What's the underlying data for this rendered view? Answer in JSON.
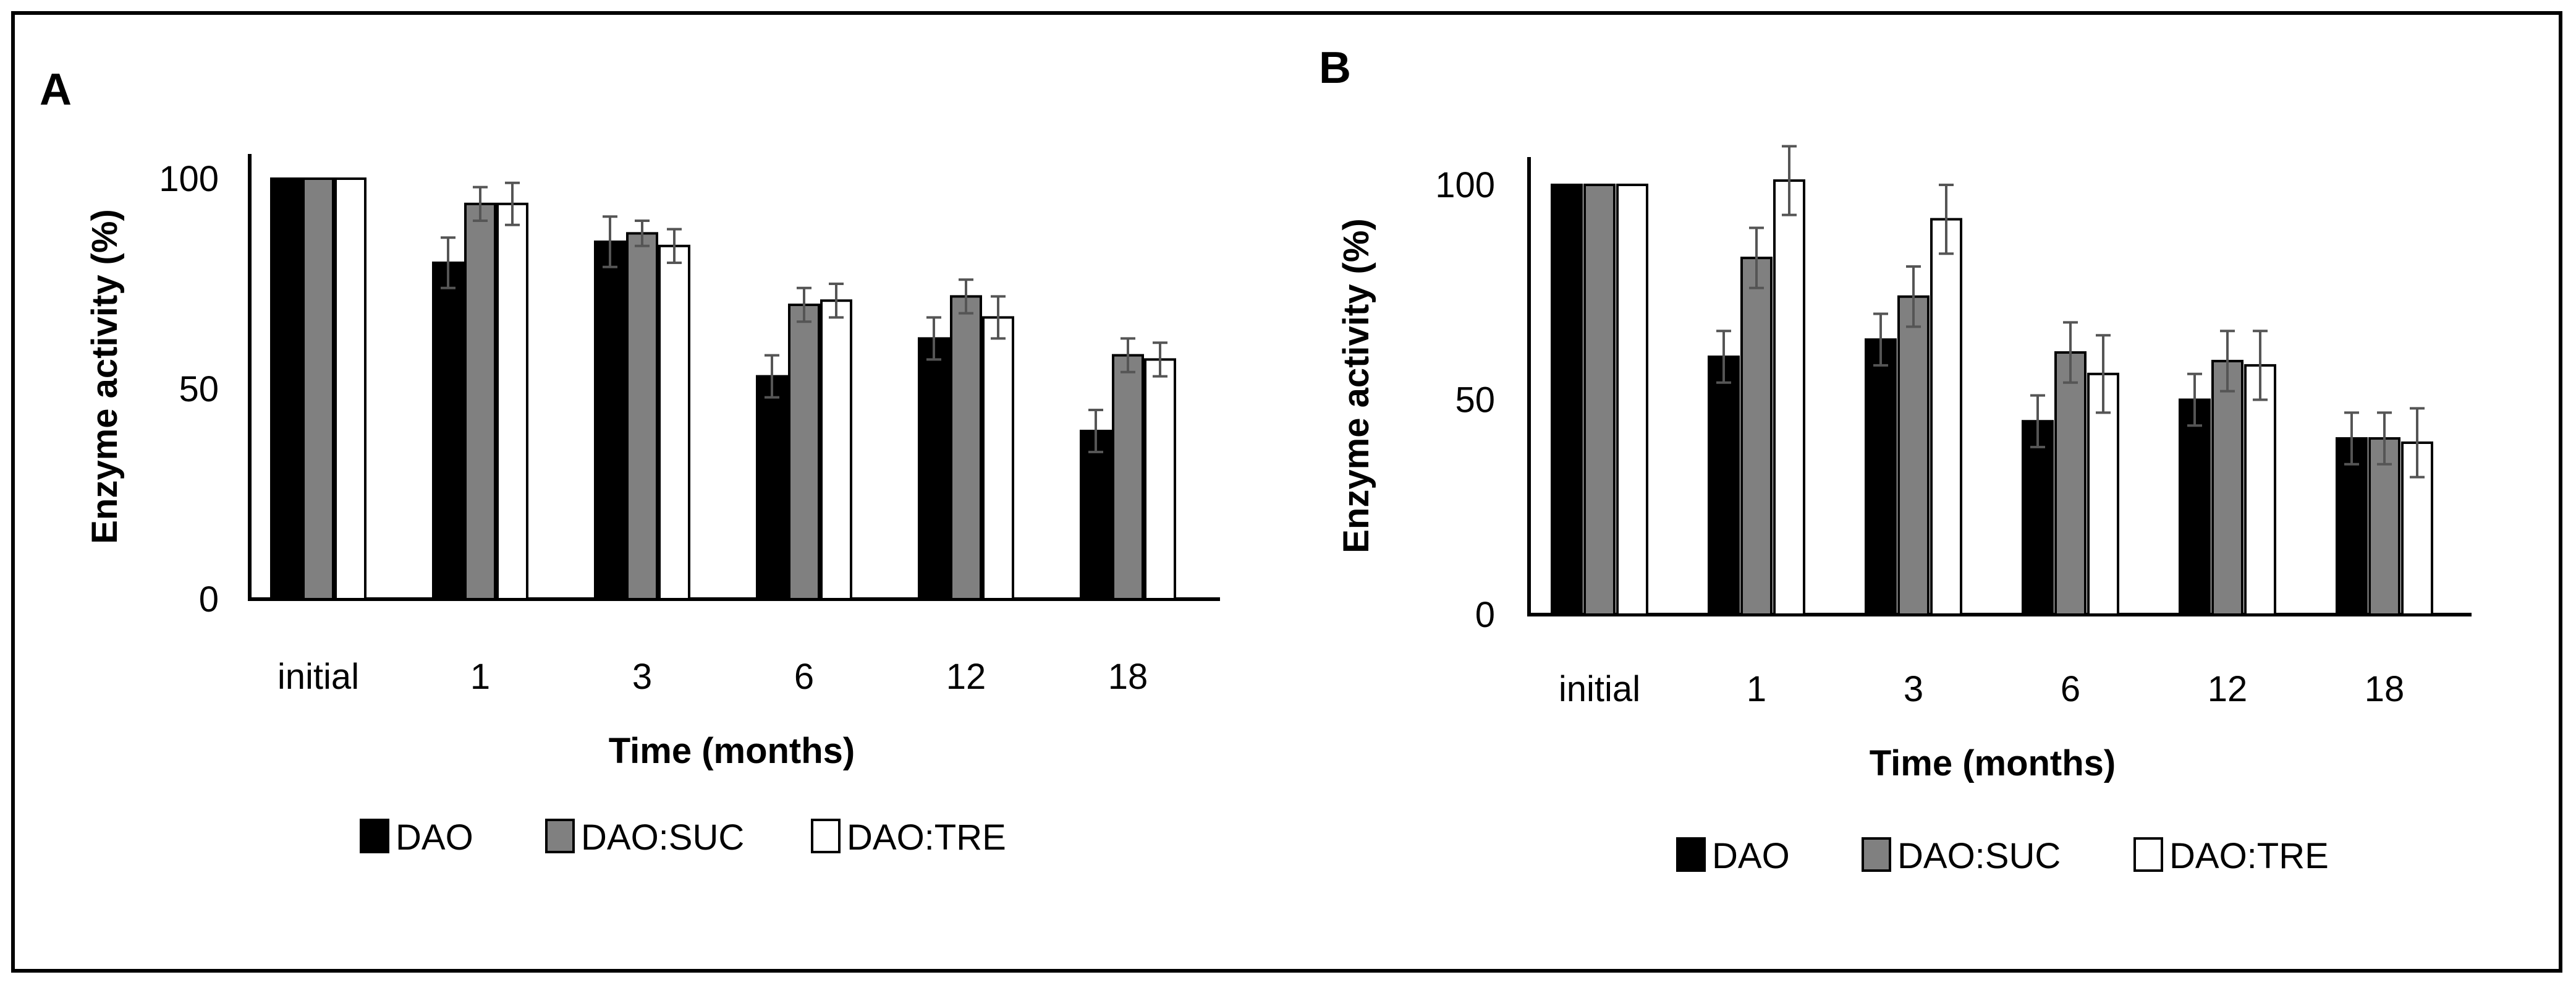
{
  "chart_data": [
    {
      "type": "bar",
      "panel": "A",
      "categories": [
        "initial",
        "1",
        "3",
        "6",
        "12",
        "18"
      ],
      "series": [
        {
          "name": "DAO",
          "color": "#000000",
          "values": [
            100,
            80,
            85,
            53,
            62,
            40
          ],
          "errors": [
            0,
            6,
            6,
            5,
            5,
            5
          ]
        },
        {
          "name": "DAO:SUC",
          "color": "#808080",
          "values": [
            100,
            94,
            87,
            70,
            72,
            58
          ],
          "errors": [
            0,
            4,
            3,
            4,
            4,
            4
          ]
        },
        {
          "name": "DAO:TRE",
          "color": "#ffffff",
          "values": [
            100,
            94,
            84,
            71,
            67,
            57
          ],
          "errors": [
            0,
            5,
            4,
            4,
            5,
            4
          ]
        }
      ],
      "ylim": [
        0,
        100
      ],
      "yticks": [
        "0",
        "50",
        "100"
      ],
      "xlabel": "Time (months)",
      "ylabel": "Enzyme activity (%)",
      "legend": "bottom"
    },
    {
      "type": "bar",
      "panel": "B",
      "categories": [
        "initial",
        "1",
        "3",
        "6",
        "12",
        "18"
      ],
      "series": [
        {
          "name": "DAO",
          "color": "#000000",
          "values": [
            100,
            60,
            64,
            45,
            50,
            41
          ],
          "errors": [
            0,
            6,
            6,
            6,
            6,
            6
          ]
        },
        {
          "name": "DAO:SUC",
          "color": "#808080",
          "values": [
            100,
            83,
            74,
            61,
            59,
            41
          ],
          "errors": [
            0,
            7,
            7,
            7,
            7,
            6
          ]
        },
        {
          "name": "DAO:TRE",
          "color": "#ffffff",
          "values": [
            100,
            101,
            92,
            56,
            58,
            40
          ],
          "errors": [
            0,
            8,
            8,
            9,
            8,
            8
          ]
        }
      ],
      "ylim": [
        0,
        100
      ],
      "yticks": [
        "0",
        "50",
        "100"
      ],
      "xlabel": "Time (months)",
      "ylabel": "Enzyme activity (%)",
      "legend": "bottom"
    }
  ]
}
